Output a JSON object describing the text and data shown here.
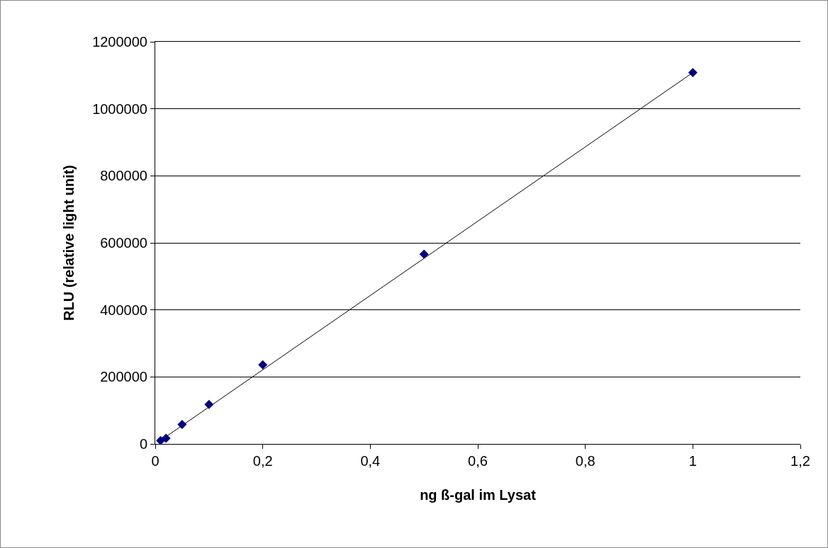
{
  "chart_data": {
    "type": "scatter",
    "xlabel": "ng ß-gal im Lysat",
    "ylabel": "RLU (relative light unit)",
    "x": [
      0.01,
      0.02,
      0.05,
      0.1,
      0.2,
      0.5,
      1
    ],
    "series": [
      {
        "color": "#000080",
        "values": [
          10000,
          17000,
          58000,
          118000,
          236000,
          566000,
          1108000
        ],
        "marker": "diamond"
      },
      {
        "type": "line",
        "color": "#000000",
        "x": [
          0.005,
          1
        ],
        "values": [
          5000,
          1108000
        ],
        "marker": "none",
        "line_style": "solid"
      }
    ],
    "xlim": [
      0,
      1.2
    ],
    "xticks": [
      0,
      {
        "value": 0.2,
        "label": "0,2"
      },
      {
        "value": 0.4,
        "label": "0,4"
      },
      {
        "value": 0.6,
        "label": "0,6"
      },
      {
        "value": 0.8,
        "label": "0,8"
      },
      1,
      {
        "value": 1.2,
        "label": "1,2"
      }
    ],
    "ylim": [
      0,
      1200000
    ],
    "yticks": [
      0,
      200000,
      400000,
      600000,
      800000,
      1000000,
      1200000
    ],
    "grid": "y"
  }
}
